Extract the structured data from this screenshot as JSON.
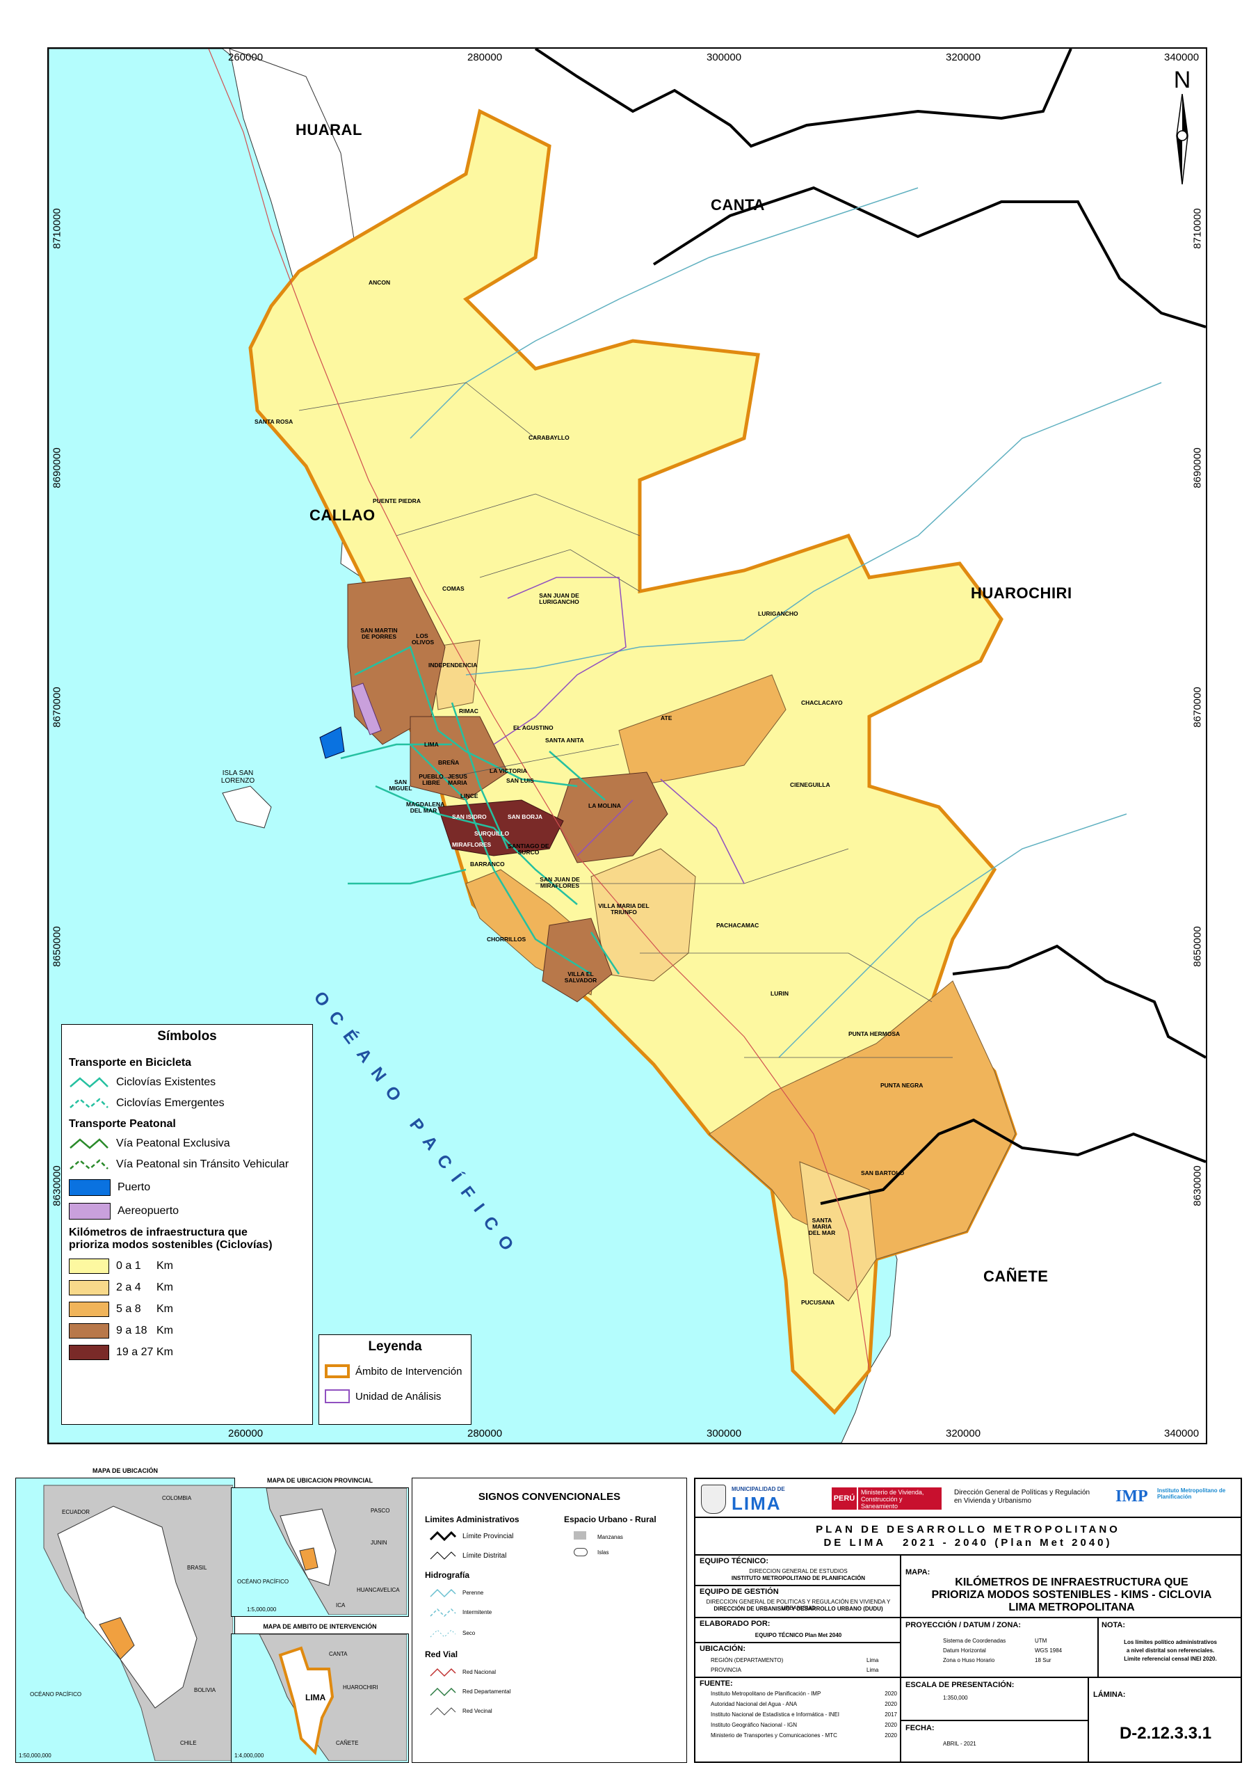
{
  "map": {
    "x_ticks_top": [
      "260000",
      "280000",
      "300000",
      "320000",
      "340000"
    ],
    "x_ticks_bottom": [
      "260000",
      "280000",
      "300000",
      "320000",
      "340000"
    ],
    "y_ticks": [
      "8710000",
      "8690000",
      "8670000",
      "8650000",
      "8630000"
    ],
    "north": "N",
    "regions": {
      "huaral": "HUARAL",
      "canta": "CANTA",
      "callao": "CALLAO",
      "huarochiri": "HUAROCHIRI",
      "canete": "CAÑETE"
    },
    "ocean": "OCÉANO PACÍFICO",
    "island": "ISLA SAN LORENZO",
    "districts": {
      "ancon": "ANCON",
      "santa_rosa": "SANTA ROSA",
      "carabayllo": "CARABAYLLO",
      "puente_piedra": "PUENTE PIEDRA",
      "comas": "COMAS",
      "sjl": "SAN JUAN DE LURIGANCHO",
      "lurigancho": "LURIGANCHO",
      "chaclacayo": "CHACLACAYO",
      "smp": "SAN MARTIN DE PORRES",
      "los_olivos": "LOS OLIVOS",
      "independencia": "INDEPENDENCIA",
      "rimac": "RIMAC",
      "el_agustino": "EL AGUSTINO",
      "santa_anita": "SANTA ANITA",
      "ate": "ATE",
      "lima": "LIMA",
      "brena": "BREÑA",
      "la_victoria": "LA VICTORIA",
      "san_luis": "SAN LUIS",
      "cieneguilla": "CIENEGUILLA",
      "san_miguel": "SAN MIGUEL",
      "pueblo_libre": "PUEBLO LIBRE",
      "jesus_maria": "JESUS MARIA",
      "lince": "LINCE",
      "magdalena": "MAGDALENA DEL MAR",
      "la_molina": "LA MOLINA",
      "san_isidro": "SAN ISIDRO",
      "san_borja": "SAN BORJA",
      "surquillo": "SURQUILLO",
      "miraflores": "MIRAFLORES",
      "santiago": "SANTIAGO DE SURCO",
      "barranco": "BARRANCO",
      "sjm": "SAN JUAN DE MIRAFLORES",
      "vmt": "VILLA MARIA DEL TRIUNFO",
      "chorrillos": "CHORRILLOS",
      "pachacamac": "PACHACAMAC",
      "ves": "VILLA EL SALVADOR",
      "lurin": "LURIN",
      "punta_hermosa": "PUNTA HERMOSA",
      "punta_negra": "PUNTA NEGRA",
      "san_bartolo": "SAN BARTOLO",
      "santa_maria": "SANTA MARIA DEL MAR",
      "pucusana": "PUCUSANA"
    }
  },
  "simbolos": {
    "title": "Símbolos",
    "bici_title": "Transporte en Bicicleta",
    "ciclovias_existentes": "Ciclovías Existentes",
    "ciclovias_emergentes": "Ciclovías Emergentes",
    "peatonal_title": "Transporte Peatonal",
    "via_exclusiva": "Vía Peatonal Exclusiva",
    "via_sin_transito": "Vía Peatonal sin Tránsito Vehicular",
    "puerto": "Puerto",
    "aeropuerto": "Aereopuerto",
    "km_title_1": "Kilómetros de infraestructura que",
    "km_title_2": "prioriza modos sostenibles (Ciclovías)",
    "classes": [
      {
        "range": "0 a 1",
        "unit": "Km",
        "color": "#fdf8a0"
      },
      {
        "range": "2 a 4",
        "unit": "Km",
        "color": "#f8d98a"
      },
      {
        "range": "5 a 8",
        "unit": "Km",
        "color": "#f0b45a"
      },
      {
        "range": "9 a 18",
        "unit": "Km",
        "color": "#b8784a"
      },
      {
        "range": "19 a 27",
        "unit": "Km",
        "color": "#7a2a28"
      }
    ]
  },
  "leyenda": {
    "title": "Leyenda",
    "ambito": "Ámbito de Intervención",
    "unidad": "Unidad de Análisis"
  },
  "insets": {
    "ubicacion": "MAPA DE UBICACIÓN",
    "provincial": "MAPA DE UBICACION PROVINCIAL",
    "ambito": "MAPA DE AMBITO DE INTERVENCIÓN",
    "ecuador": "ECUADOR",
    "colombia": "COLOMBIA",
    "brasil": "BRASIL",
    "bolivia": "BOLIVIA",
    "chile": "CHILE",
    "oceano": "OCÉANO PACÍFICO",
    "lima": "LIMA",
    "canta": "CANTA",
    "huarochiri": "HUAROCHIRI",
    "canete": "CAÑETE",
    "pasco": "PASCO",
    "junin": "JUNIN",
    "huancavelica": "HUANCAVELICA",
    "ica": "ICA",
    "scale1": "1:50,000,000",
    "scale2": "1:5,000,000",
    "scale3": "1:4,000,000"
  },
  "signos": {
    "title": "SIGNOS CONVENCIONALES",
    "limites_title": "Limites Administrativos",
    "limite_provincial": "Límite Provincial",
    "limite_distrital": "Límite Distrital",
    "espacio_title": "Espacio Urbano - Rural",
    "manzanas": "Manzanas",
    "islas": "Islas",
    "hidro_title": "Hidrografía",
    "perenne": "Perenne",
    "intermitente": "Intermitente",
    "seco": "Seco",
    "vial_title": "Red Vial",
    "red_nacional": "Red Nacional",
    "red_departamental": "Red Departamental",
    "red_vecinal": "Red Vecinal"
  },
  "titleblock": {
    "muni_small": "MUNICIPALIDAD DE",
    "muni_big": "LIMA",
    "peru": "PERÚ",
    "ministerio": "Ministerio de Vivienda, Construcción y Saneamiento",
    "direccion": "Dirección General de Políticas y Regulación en Vivienda y Urbanismo",
    "imp": "IMP",
    "imp_full": "Instituto Metropolitano de Planificación",
    "plan_1": "PLAN DE DESARROLLO METROPOLITANO",
    "plan_2": "DE LIMA   2021 - 2040 (Plan Met 2040)",
    "equipo_tecnico": "EQUIPO TÉCNICO:",
    "et_1": "DIRECCION GENERAL DE ESTUDIOS",
    "et_2": "INSTITUTO METROPOLITANO DE PLANIFICACIÓN",
    "equipo_gestion": "EQUIPO DE GESTIÓN",
    "eg_1": "DIRECCION GENERAL DE POLITICAS Y REGULACIÓN EN VIVIENDA Y URBANISMO",
    "eg_2": "DIRECCIÓN DE URBANISMO Y DESARROLLO URBANO (DUDU)",
    "elaborado": "ELABORADO POR:",
    "elaborado_val": "EQUIPO TÉCNICO Plan Met 2040",
    "ubicacion": "UBICACIÓN:",
    "region_label": "REGIÓN (DEPARTAMENTO)",
    "region_val": "Lima",
    "provincia_label": "PROVINCIA",
    "provincia_val": "Lima",
    "fuente": "FUENTE:",
    "fuentes": [
      {
        "name": "Instituto Metropolitano de Planificación - IMP",
        "year": "2020"
      },
      {
        "name": "Autoridad Nacional del Agua - ANA",
        "year": "2020"
      },
      {
        "name": "Instituto Nacional de Estadística e Informática - INEI",
        "year": "2017"
      },
      {
        "name": "Instituto Geográfico Nacional - IGN",
        "year": "2020"
      },
      {
        "name": "Ministerio de Transportes y Comunicaciones - MTC",
        "year": "2020"
      }
    ],
    "mapa_label": "MAPA:",
    "mapa_title_1": "KILÓMETROS DE INFRAESTRUCTURA QUE",
    "mapa_title_2": "PRIORIZA MODOS SOSTENIBLES - KIMS - CICLOVIA",
    "mapa_title_3": "LIMA METROPOLITANA",
    "proyeccion": "PROYECCIÓN / DATUM / ZONA:",
    "sistema_label": "Sistema de Coordenadas",
    "sistema_val": "UTM",
    "datum_label": "Datum Horizontal",
    "datum_val": "WGS 1984",
    "zona_label": "Zona o Huso Horario",
    "zona_val": "18 Sur",
    "nota": "NOTA:",
    "nota_1": "Los límites político administrativos",
    "nota_2": "a nivel distrital son referenciales.",
    "nota_3": "Limite referencial censal INEI 2020.",
    "escala": "ESCALA DE PRESENTACIÓN:",
    "escala_val": "1:350,000",
    "fecha": "FECHA:",
    "fecha_val": "ABRIL - 2021",
    "lamina": "LÁMINA:",
    "lamina_val": "D-2.12.3.3.1"
  }
}
